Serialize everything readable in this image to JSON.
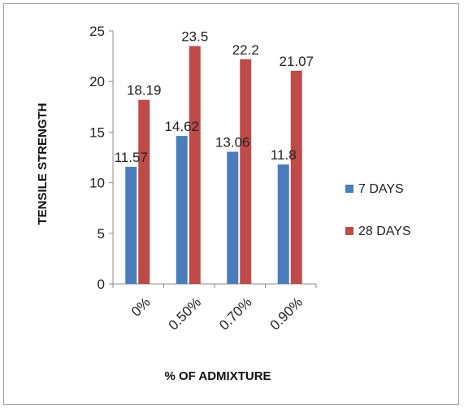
{
  "chart_data": {
    "type": "bar",
    "title": "",
    "xlabel": "%   OF ADMIXTURE",
    "ylabel": "TENSILE   STRENGTH",
    "categories": [
      "0%",
      "0.50%",
      "0.70%",
      "0.90%"
    ],
    "series": [
      {
        "name": "7 DAYS",
        "color": "#4a7ebb",
        "values": [
          11.57,
          14.62,
          13.06,
          11.8
        ],
        "labels": [
          "11.57",
          "14.62",
          "13.06",
          "11.8"
        ]
      },
      {
        "name": "28 DAYS",
        "color": "#be4b48",
        "values": [
          18.19,
          23.5,
          22.2,
          21.07
        ],
        "labels": [
          "18.19",
          "23.5",
          "22.2",
          "21.07"
        ]
      }
    ],
    "ylim": [
      0,
      25
    ],
    "yticks": [
      0,
      5,
      10,
      15,
      20,
      25
    ],
    "grid": false,
    "legend_position": "right"
  }
}
